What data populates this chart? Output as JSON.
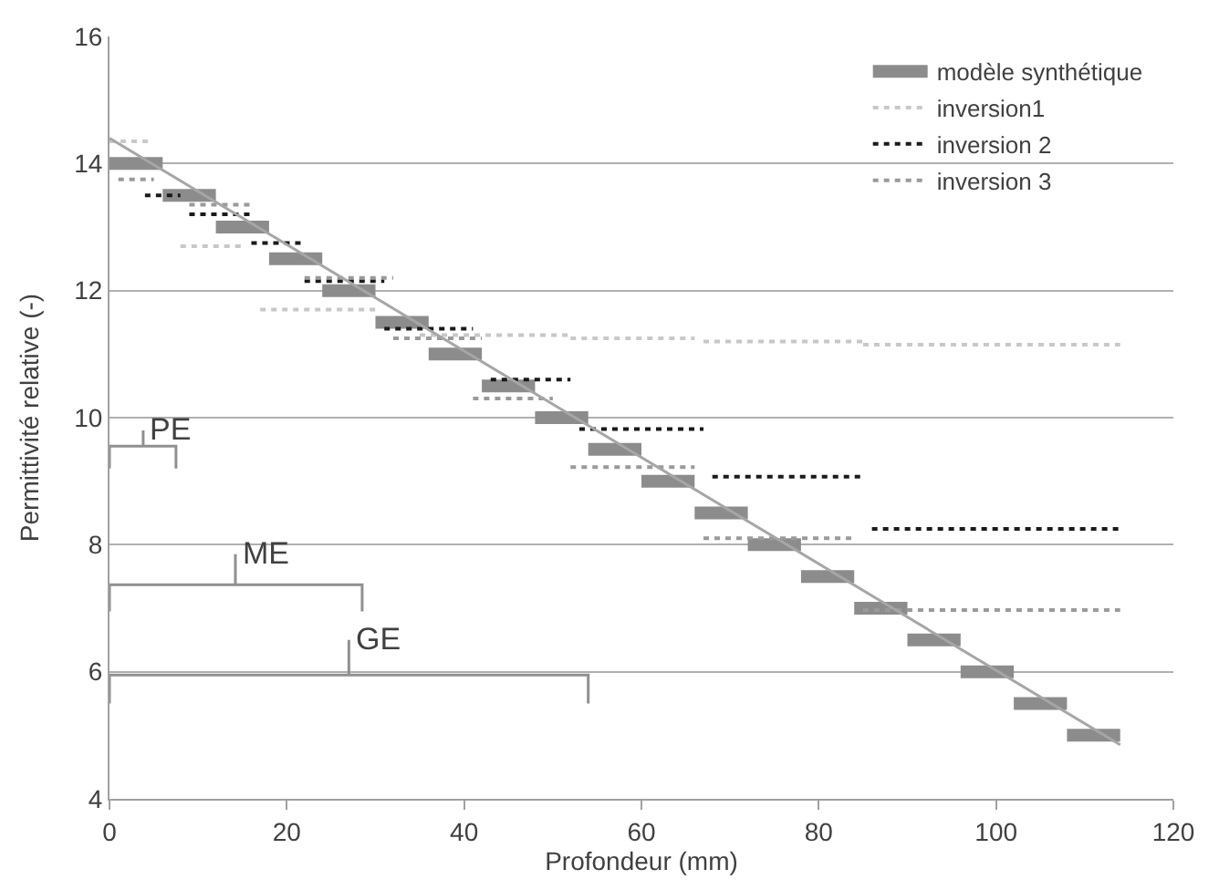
{
  "chart_data": {
    "type": "line",
    "xlabel": "Profondeur (mm)",
    "ylabel": "Permittivité relative (-)",
    "xlim": [
      0,
      120
    ],
    "xticks": [
      0,
      20,
      40,
      60,
      80,
      100,
      120
    ],
    "ylim": [
      4,
      16
    ],
    "yticks": [
      4,
      6,
      8,
      10,
      12,
      14,
      16
    ],
    "grid": "y",
    "legend": "top right",
    "line_style": "solid",
    "marker": "none",
    "series": [
      {
        "name": "modèle synthétique",
        "color": "#8c8c8c",
        "x": [
          0,
          6,
          null,
          6,
          12,
          null,
          12,
          18,
          null,
          18,
          24,
          null,
          24,
          30,
          null,
          30,
          36,
          null,
          36,
          42,
          null,
          42,
          48,
          null,
          48,
          54,
          null,
          54,
          60,
          null,
          60,
          66,
          null,
          66,
          72,
          null,
          72,
          78,
          null,
          78,
          84,
          null,
          84,
          90,
          null,
          90,
          96,
          null,
          96,
          102,
          null,
          102,
          108,
          null,
          108,
          114
        ],
        "values": [
          14,
          14,
          null,
          13.5,
          13.5,
          null,
          13,
          13,
          null,
          12.5,
          12.5,
          null,
          12,
          12,
          null,
          11.5,
          11.5,
          null,
          11,
          11,
          null,
          10.5,
          10.5,
          null,
          10,
          10,
          null,
          9.5,
          9.5,
          null,
          9,
          9,
          null,
          8.5,
          8.5,
          null,
          8,
          8,
          null,
          7.5,
          7.5,
          null,
          7,
          7,
          null,
          6.5,
          6.5,
          null,
          6,
          6,
          null,
          5.5,
          5.5,
          null,
          5,
          5
        ]
      },
      {
        "name": "inversion1",
        "color": "#c8c8c8",
        "line_style": "dotted",
        "x": [
          0,
          4.5,
          null,
          8,
          15,
          null,
          17,
          30,
          null,
          35,
          52,
          null,
          52,
          66,
          null,
          67,
          85,
          null,
          85,
          114
        ],
        "values": [
          14.35,
          14.35,
          null,
          12.7,
          12.7,
          null,
          11.7,
          11.7,
          null,
          11.3,
          11.3,
          null,
          11.25,
          11.25,
          null,
          11.2,
          11.2,
          null,
          11.15,
          11.15
        ]
      },
      {
        "name": "inversion 2",
        "color": "#1a1a1a",
        "line_style": "dotted",
        "x": [
          4,
          8,
          null,
          9,
          16,
          null,
          16,
          22,
          null,
          22,
          31,
          null,
          31,
          41,
          null,
          43,
          52,
          null,
          53,
          67,
          null,
          68,
          85,
          null,
          86,
          114
        ],
        "values": [
          13.5,
          13.5,
          null,
          13.2,
          13.2,
          null,
          12.75,
          12.75,
          null,
          12.15,
          12.15,
          null,
          11.4,
          11.4,
          null,
          10.6,
          10.6,
          null,
          9.82,
          9.82,
          null,
          9.07,
          9.07,
          null,
          8.25,
          8.25
        ]
      },
      {
        "name": "inversion 3",
        "color": "#9a9a9a",
        "line_style": "dotted",
        "x": [
          1,
          5,
          null,
          9,
          16,
          null,
          22,
          32,
          null,
          32,
          42,
          null,
          41,
          50,
          null,
          52,
          66,
          null,
          67,
          84,
          null,
          85,
          114
        ],
        "values": [
          13.75,
          13.75,
          null,
          13.35,
          13.35,
          null,
          12.2,
          12.2,
          null,
          11.25,
          11.25,
          null,
          10.3,
          10.3,
          null,
          9.22,
          9.22,
          null,
          8.1,
          8.1,
          null,
          6.97,
          6.97
        ]
      },
      {
        "color": "#a6a6a6",
        "x": [
          0,
          114
        ],
        "values": [
          14.4,
          4.85
        ]
      },
      {
        "color": "#909090",
        "x": [
          0,
          0,
          3.8,
          3.8,
          3.8,
          7.5,
          7.5
        ],
        "values": [
          9.2,
          9.55,
          9.55,
          9.8,
          9.55,
          9.55,
          9.2
        ]
      },
      {
        "color": "#909090",
        "x": [
          0,
          0,
          14.2,
          14.2,
          14.2,
          28.5,
          28.5
        ],
        "values": [
          6.95,
          7.37,
          7.37,
          7.85,
          7.37,
          7.37,
          6.95
        ]
      },
      {
        "color": "#909090",
        "x": [
          0,
          0,
          27,
          27,
          27,
          54,
          54
        ],
        "values": [
          5.5,
          5.95,
          5.95,
          6.5,
          5.95,
          5.95,
          5.5
        ]
      }
    ],
    "annotations": [
      {
        "text": "PE",
        "x": 3.8,
        "y": 9.8
      },
      {
        "text": "ME",
        "x": 14.2,
        "y": 7.85
      },
      {
        "text": "GE",
        "x": 27,
        "y": 6.5
      }
    ]
  }
}
